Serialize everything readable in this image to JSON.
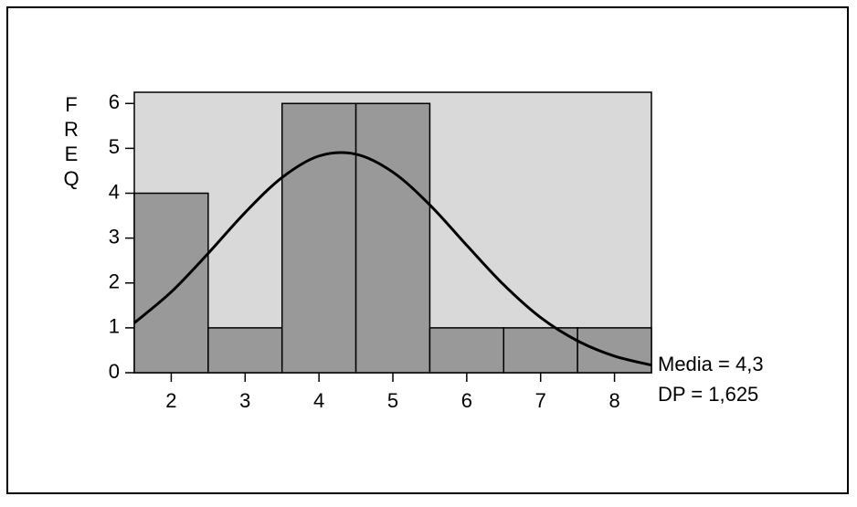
{
  "chart_data": {
    "type": "histogram",
    "y_label": "FREQ",
    "bins": [
      1.5,
      2.5,
      3.5,
      4.5,
      5.5,
      6.5,
      7.5,
      8.5
    ],
    "counts": [
      4,
      1,
      6,
      6,
      1,
      1,
      1
    ],
    "color": "#999999",
    "background": "#d9d9d9",
    "xlim": [
      1.5,
      8.5
    ],
    "xticks": [
      2,
      3,
      4,
      5,
      6,
      7,
      8
    ],
    "ylim": [
      0,
      6.25
    ],
    "yticks": [
      0,
      1,
      2,
      3,
      4,
      5,
      6
    ],
    "curve": {
      "x": [
        1.5,
        2,
        2.5,
        3,
        3.5,
        4,
        4.5,
        5,
        5.5,
        6,
        6.5,
        7,
        7.5,
        8,
        8.5
      ],
      "y": [
        1.11,
        1.8,
        2.66,
        3.57,
        4.35,
        4.83,
        4.87,
        4.47,
        3.74,
        2.84,
        1.96,
        1.23,
        0.71,
        0.37,
        0.17
      ]
    },
    "annotations": [
      "Media = 4,3",
      "DP = 1,625"
    ]
  }
}
